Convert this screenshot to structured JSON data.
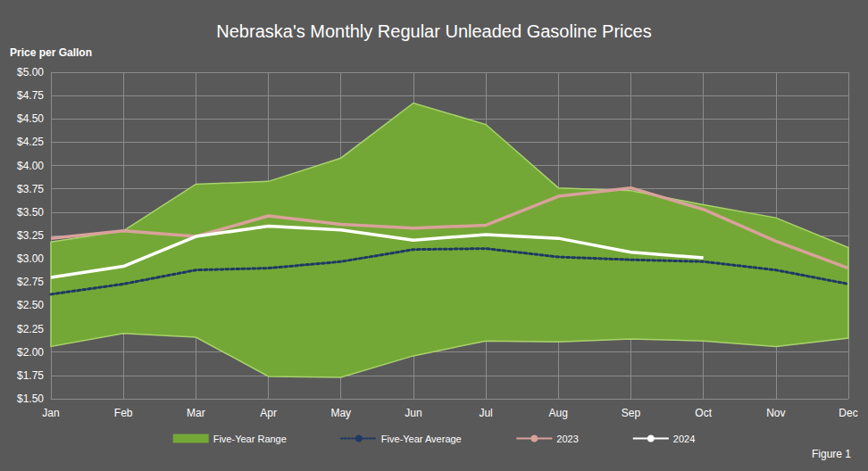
{
  "chart_data": {
    "type": "line",
    "title": "Nebraska's Monthly Regular Unleaded Gasoline Prices",
    "y_label": "Price per Gallon",
    "annotation": "Figure 1",
    "categories": [
      "Jan",
      "Feb",
      "Mar",
      "Apr",
      "May",
      "Jun",
      "Jul",
      "Aug",
      "Sep",
      "Oct",
      "Nov",
      "Dec"
    ],
    "series": [
      {
        "name": "Five-Year Range",
        "type": "range",
        "color": "#74a836",
        "low": [
          2.06,
          2.2,
          2.16,
          1.74,
          1.73,
          1.96,
          2.12,
          2.11,
          2.14,
          2.12,
          2.06,
          2.15
        ],
        "high": [
          3.18,
          3.3,
          3.8,
          3.83,
          4.08,
          4.67,
          4.44,
          3.76,
          3.73,
          3.58,
          3.44,
          3.12
        ]
      },
      {
        "name": "Five-Year Average",
        "type": "line",
        "color": "#1f3864",
        "line_style": "dotted",
        "values": [
          2.62,
          2.73,
          2.88,
          2.9,
          2.97,
          3.1,
          3.11,
          3.02,
          2.99,
          2.97,
          2.88,
          2.73
        ]
      },
      {
        "name": "2023",
        "type": "line",
        "color": "#d9a19b",
        "line_style": "solid",
        "values": [
          3.22,
          3.3,
          3.24,
          3.46,
          3.37,
          3.33,
          3.36,
          3.67,
          3.76,
          3.53,
          3.19,
          2.9
        ]
      },
      {
        "name": "2024",
        "type": "line",
        "color": "#ffffff",
        "line_style": "solid",
        "values": [
          2.8,
          2.92,
          3.24,
          3.35,
          3.31,
          3.2,
          3.26,
          3.22,
          3.07,
          3.01,
          null,
          null
        ]
      }
    ],
    "ylim": [
      1.5,
      5
    ],
    "yticks": [
      {
        "value": 1.5,
        "label": "$1.50"
      },
      {
        "value": 1.75,
        "label": "$1.75"
      },
      {
        "value": 2,
        "label": "$2.00"
      },
      {
        "value": 2.25,
        "label": "$2.25"
      },
      {
        "value": 2.5,
        "label": "$2.50"
      },
      {
        "value": 2.75,
        "label": "$2.75"
      },
      {
        "value": 3,
        "label": "$3.00"
      },
      {
        "value": 3.25,
        "label": "$3.25"
      },
      {
        "value": 3.5,
        "label": "$3.50"
      },
      {
        "value": 3.75,
        "label": "$3.75"
      },
      {
        "value": 4,
        "label": "$4.00"
      },
      {
        "value": 4.25,
        "label": "$4.25"
      },
      {
        "value": 4.5,
        "label": "$4.50"
      },
      {
        "value": 4.75,
        "label": "$4.75"
      },
      {
        "value": 5,
        "label": "$5.00"
      }
    ],
    "grid": true,
    "legend": "bottom"
  }
}
